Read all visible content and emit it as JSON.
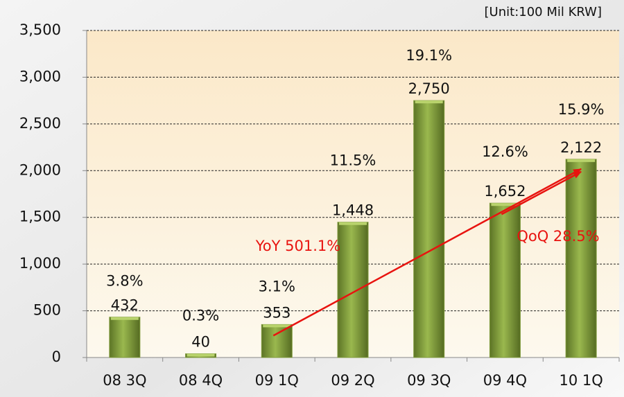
{
  "chart_data": {
    "type": "bar",
    "unit_note": "[Unit:100 Mil KRW]",
    "categories": [
      "08 3Q",
      "08 4Q",
      "09 1Q",
      "09 2Q",
      "09 3Q",
      "09 4Q",
      "10 1Q"
    ],
    "values": [
      432,
      40,
      353,
      1448,
      2750,
      1652,
      2122
    ],
    "value_labels": [
      "432",
      "40",
      "353",
      "1,448",
      "2,750",
      "1,652",
      "2,122"
    ],
    "rate_labels": [
      "3.8%",
      "0.3%",
      "3.1%",
      "11.5%",
      "19.1%",
      "12.6%",
      "15.9%"
    ],
    "color": "#7f9a3c",
    "ylim": [
      0,
      3500
    ],
    "yticks": [
      0,
      500,
      {
        "value": 1000,
        "label": "1,000"
      },
      {
        "value": 1500,
        "label": "1,500"
      },
      {
        "value": 2000,
        "label": "2,000"
      },
      {
        "value": 2500,
        "label": "2,500"
      },
      {
        "value": 3000,
        "label": "3,000"
      },
      {
        "value": 3500,
        "label": "3,500"
      }
    ],
    "grid": true,
    "annotations": [
      {
        "text": "YoY 501.1%",
        "from": 2,
        "to": 6
      },
      {
        "text": "QoQ 28.5%",
        "from": 5,
        "to": 6
      }
    ]
  }
}
